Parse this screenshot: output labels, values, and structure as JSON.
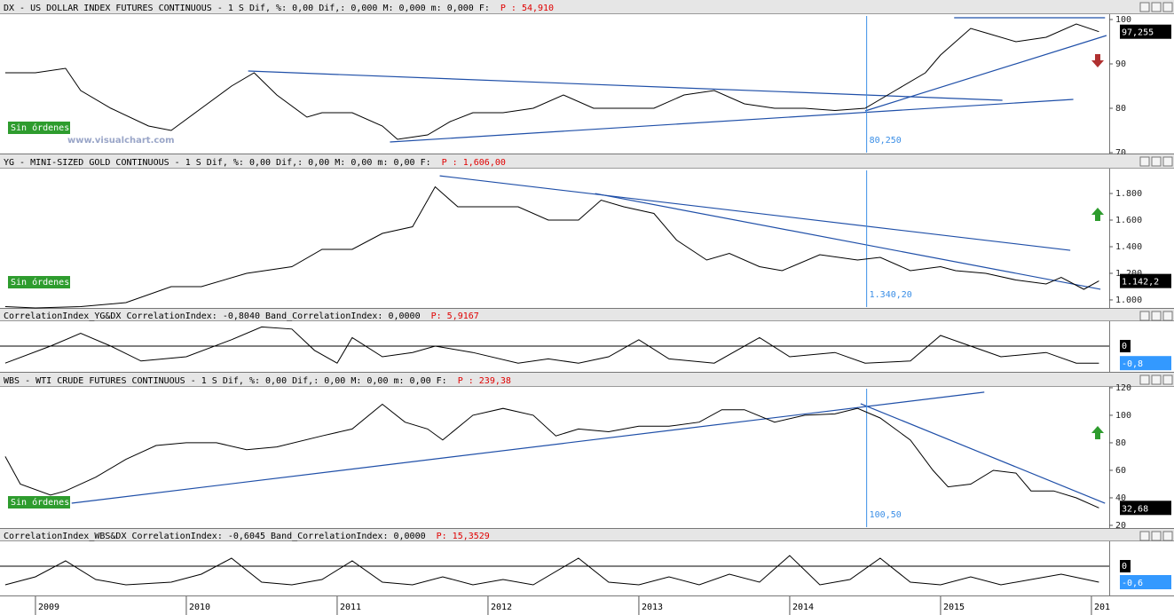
{
  "chart_data": [
    {
      "type": "line",
      "title": "DX - US DOLLAR INDEX FUTURES CONTINUOUS - 1 S Dif, %: 0,00 Dif,: 0,000 M: 0,000 m: 0,000 F:",
      "price_label": "P : 54,910",
      "x": [
        2008.8,
        2009.0,
        2009.2,
        2009.3,
        2009.5,
        2009.75,
        2009.9,
        2010.1,
        2010.3,
        2010.45,
        2010.6,
        2010.8,
        2010.9,
        2011.1,
        2011.3,
        2011.4,
        2011.6,
        2011.75,
        2011.9,
        2012.1,
        2012.3,
        2012.5,
        2012.7,
        2012.9,
        2013.1,
        2013.3,
        2013.5,
        2013.7,
        2013.9,
        2014.1,
        2014.3,
        2014.5,
        2014.7,
        2014.9,
        2015.0,
        2015.2,
        2015.3,
        2015.5,
        2015.7,
        2015.9,
        2016.05
      ],
      "values": [
        88,
        88,
        89,
        84,
        80,
        76,
        75,
        80,
        85,
        88,
        83,
        78,
        79,
        79,
        76,
        73,
        74,
        77,
        79,
        79,
        80,
        83,
        80,
        80,
        80,
        83,
        84,
        81,
        80,
        80,
        79.5,
        80,
        84,
        88,
        92,
        98,
        97,
        95,
        96,
        99,
        97.255
      ],
      "color": "#000000",
      "ylim": [
        69.6,
        101.2
      ],
      "yticks": [
        70,
        80,
        90,
        100
      ],
      "trendlines": [
        {
          "x": [
            2010.41,
            2015.41
          ],
          "y": [
            88.4,
            81.8
          ]
        },
        {
          "x": [
            2015.09,
            2016.09
          ],
          "y": [
            100.4,
            100.4
          ]
        },
        {
          "x": [
            2011.35,
            2015.88
          ],
          "y": [
            72.4,
            82
          ]
        },
        {
          "x": [
            2014.5,
            2016.1
          ],
          "y": [
            79.4,
            96.4
          ]
        }
      ],
      "trend_color": "#1f4fa8",
      "marker": {
        "x": 2014.51,
        "label": "80,250"
      },
      "current": {
        "value": 97.255,
        "label": "97,255"
      },
      "orders": "Sin órdenes",
      "signal": "down",
      "watermark": "www.visualchart.com"
    },
    {
      "type": "line",
      "title": "YG - MINI-SIZED GOLD CONTINUOUS - 1 S Dif, %: 0,00 Dif,: 0,00 M: 0,00 m: 0,00 F:",
      "price_label": "P : 1,606,00",
      "x": [
        2008.8,
        2009.0,
        2009.3,
        2009.6,
        2009.9,
        2010.1,
        2010.4,
        2010.7,
        2010.9,
        2011.1,
        2011.3,
        2011.5,
        2011.65,
        2011.8,
        2012.0,
        2012.2,
        2012.4,
        2012.6,
        2012.75,
        2012.9,
        2013.1,
        2013.25,
        2013.45,
        2013.6,
        2013.8,
        2013.95,
        2014.2,
        2014.45,
        2014.6,
        2014.8,
        2015.0,
        2015.1,
        2015.3,
        2015.5,
        2015.7,
        2015.8,
        2015.95,
        2016.05
      ],
      "values": [
        950,
        940,
        950,
        980,
        1100,
        1100,
        1200,
        1250,
        1380,
        1380,
        1500,
        1550,
        1850,
        1700,
        1700,
        1700,
        1600,
        1600,
        1750,
        1700,
        1650,
        1450,
        1300,
        1350,
        1250,
        1220,
        1340,
        1300,
        1320,
        1220,
        1250,
        1220,
        1200,
        1150,
        1120,
        1170,
        1080,
        1142.2
      ],
      "color": "#000000",
      "ylim": [
        933,
        1987
      ],
      "yticks": [
        {
          "value": 1000,
          "label": "1.000"
        },
        {
          "value": 1200,
          "label": "1.200"
        },
        {
          "value": 1400,
          "label": "1.400"
        },
        {
          "value": 1600,
          "label": "1.600"
        },
        {
          "value": 1800,
          "label": "1.800"
        }
      ],
      "trendlines": [
        {
          "x": [
            2011.68,
            2015.86
          ],
          "y": [
            1933,
            1373
          ]
        },
        {
          "x": [
            2012.71,
            2016.06
          ],
          "y": [
            1800,
            1080
          ]
        }
      ],
      "trend_color": "#1f4fa8",
      "marker": {
        "x": 2014.51,
        "label": "1.340,20"
      },
      "current": {
        "value": 1142.2,
        "label": "1.142,2"
      },
      "orders": "Sin órdenes",
      "signal": "up"
    },
    {
      "type": "line",
      "title": "CorrelationIndex_YG&DX CorrelationIndex: -0,8040 Band_CorrelationIndex: 0,0000",
      "price_label": "P: 5,9167",
      "x": [
        2008.8,
        2009.1,
        2009.3,
        2009.5,
        2009.7,
        2010.0,
        2010.3,
        2010.5,
        2010.7,
        2010.85,
        2011.0,
        2011.1,
        2011.3,
        2011.5,
        2011.65,
        2011.9,
        2012.2,
        2012.4,
        2012.6,
        2012.8,
        2013.0,
        2013.2,
        2013.5,
        2013.8,
        2014.0,
        2014.3,
        2014.5,
        2014.8,
        2015.0,
        2015.2,
        2015.4,
        2015.7,
        2015.9,
        2016.05
      ],
      "values": [
        -0.8,
        0,
        0.6,
        0,
        -0.7,
        -0.5,
        0.3,
        0.9,
        0.8,
        -0.2,
        -0.8,
        0.4,
        -0.5,
        -0.3,
        0,
        -0.3,
        -0.8,
        -0.6,
        -0.8,
        -0.5,
        0.3,
        -0.6,
        -0.8,
        0.4,
        -0.5,
        -0.3,
        -0.8,
        -0.7,
        0.5,
        0,
        -0.5,
        -0.3,
        -0.8,
        -0.8
      ],
      "color": "#000000",
      "ylim": [
        -1.25,
        1.167
      ],
      "reference": {
        "value": 0,
        "label": "0"
      },
      "current": {
        "value": -0.8,
        "label": "-0,8"
      }
    },
    {
      "type": "line",
      "title": "WBS - WTI CRUDE FUTURES CONTINUOUS - 1 S Dif, %: 0,00 Dif,: 0,00 M: 0,00 m: 0,00 F:",
      "price_label": "P : 239,38",
      "x": [
        2008.8,
        2008.9,
        2009.1,
        2009.2,
        2009.4,
        2009.6,
        2009.8,
        2010.0,
        2010.2,
        2010.4,
        2010.6,
        2010.9,
        2011.1,
        2011.3,
        2011.45,
        2011.6,
        2011.7,
        2011.9,
        2012.1,
        2012.3,
        2012.45,
        2012.6,
        2012.8,
        2013.0,
        2013.2,
        2013.4,
        2013.55,
        2013.7,
        2013.9,
        2014.1,
        2014.3,
        2014.45,
        2014.6,
        2014.8,
        2014.95,
        2015.05,
        2015.2,
        2015.35,
        2015.5,
        2015.6,
        2015.75,
        2015.9,
        2016.05
      ],
      "values": [
        70,
        50,
        42,
        45,
        55,
        68,
        78,
        80,
        80,
        75,
        77,
        85,
        90,
        108,
        95,
        90,
        82,
        100,
        105,
        100,
        85,
        90,
        88,
        92,
        92,
        95,
        104,
        104,
        95,
        100,
        101,
        105,
        98,
        82,
        60,
        48,
        50,
        60,
        58,
        45,
        45,
        40,
        32.68
      ],
      "color": "#000000",
      "ylim": [
        17.4,
        120.6
      ],
      "yticks": [
        20,
        40,
        60,
        80,
        100,
        120
      ],
      "trendlines": [
        {
          "x": [
            2009.24,
            2015.29
          ],
          "y": [
            36.1,
            116.8
          ]
        },
        {
          "x": [
            2014.47,
            2016.09
          ],
          "y": [
            108.4,
            36.1
          ]
        }
      ],
      "trend_color": "#1f4fa8",
      "marker": {
        "x": 2014.51,
        "label": "100,50"
      },
      "current": {
        "value": 32.68,
        "label": "32,68"
      },
      "orders": "Sin órdenes",
      "signal": "up"
    },
    {
      "type": "line",
      "title": "CorrelationIndex_WBS&DX CorrelationIndex: -0,6045 Band_CorrelationIndex: 0,0000",
      "price_label": "P: 15,3529",
      "x": [
        2008.8,
        2009.0,
        2009.2,
        2009.4,
        2009.6,
        2009.9,
        2010.1,
        2010.3,
        2010.5,
        2010.7,
        2010.9,
        2011.1,
        2011.3,
        2011.5,
        2011.7,
        2011.9,
        2012.1,
        2012.3,
        2012.6,
        2012.8,
        2013.0,
        2013.2,
        2013.4,
        2013.6,
        2013.8,
        2014.0,
        2014.2,
        2014.4,
        2014.6,
        2014.8,
        2015.0,
        2015.2,
        2015.4,
        2015.6,
        2015.8,
        2016.05
      ],
      "values": [
        -0.7,
        -0.4,
        0.2,
        -0.5,
        -0.7,
        -0.6,
        -0.3,
        0.3,
        -0.6,
        -0.7,
        -0.5,
        0.2,
        -0.6,
        -0.7,
        -0.4,
        -0.7,
        -0.5,
        -0.7,
        0.3,
        -0.6,
        -0.7,
        -0.4,
        -0.7,
        -0.3,
        -0.6,
        0.4,
        -0.7,
        -0.5,
        0.3,
        -0.6,
        -0.7,
        -0.4,
        -0.7,
        -0.5,
        -0.3,
        -0.6
      ],
      "color": "#000000",
      "ylim": [
        -1.133,
        0.933
      ],
      "reference": {
        "value": 0,
        "label": "0"
      },
      "current": {
        "value": -0.6,
        "label": "-0,6"
      },
      "xlim": [
        2008.765,
        2016.118
      ],
      "xticks": [
        2009,
        2010,
        2011,
        2012,
        2013,
        2014,
        2015,
        {
          "value": 2016,
          "label": "201"
        }
      ]
    }
  ]
}
